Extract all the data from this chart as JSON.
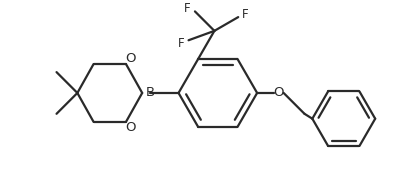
{
  "background_color": "#ffffff",
  "line_color": "#2a2a2a",
  "line_width": 1.6,
  "font_size": 8.5,
  "figsize": [
    4.17,
    1.85
  ],
  "dpi": 100,
  "xlim": [
    0,
    417
  ],
  "ylim": [
    0,
    185
  ]
}
